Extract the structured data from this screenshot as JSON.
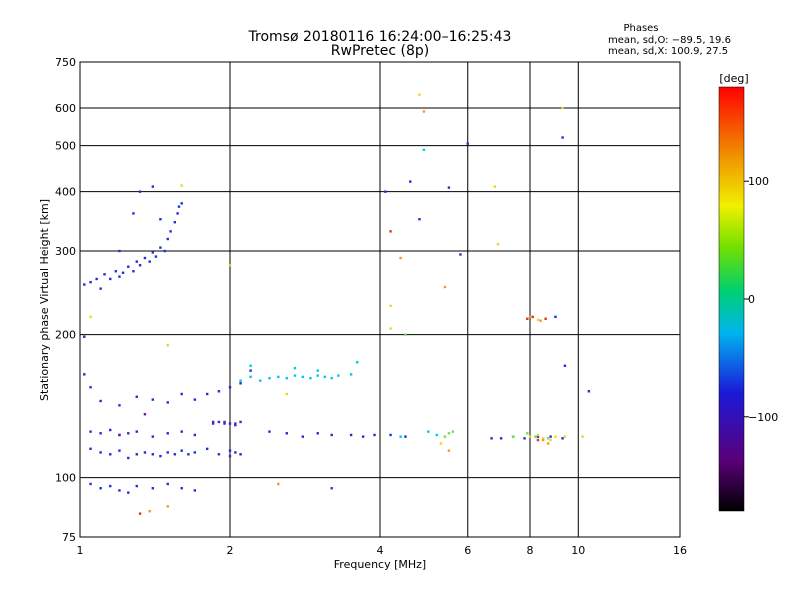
{
  "chart_data": {
    "type": "scatter",
    "title": "Tromsø 20180116 16:24:00–16:25:43",
    "subtitle": "RwPretec (8p)",
    "xlabel": "Frequency [MHz]",
    "ylabel": "Stationary phase Virtual Height [km]",
    "x_scale": "log2",
    "y_scale": "log",
    "xlim": [
      1,
      16
    ],
    "ylim": [
      75,
      750
    ],
    "x_ticks": [
      "1",
      "2",
      "4",
      "6",
      "8",
      "10",
      "16"
    ],
    "x_tick_values": [
      1,
      2,
      4,
      6,
      8,
      10,
      16
    ],
    "y_ticks": [
      "75",
      "100",
      "200",
      "300",
      "400",
      "500",
      "600",
      "750"
    ],
    "y_tick_values": [
      75,
      100,
      200,
      300,
      400,
      500,
      600,
      750
    ],
    "grid": true,
    "legend": {
      "title": "Phases",
      "lines": [
        "mean, sd,O: −89.5, 19.6",
        "mean, sd,X: 100.9, 27.5"
      ],
      "position": "top-right"
    },
    "colorbar": {
      "label": "[deg]",
      "ticks": [
        "100",
        "0",
        "−100"
      ],
      "tick_values": [
        100,
        0,
        -100
      ],
      "range": [
        -180,
        180
      ],
      "colormap": "rainbow"
    },
    "series": [
      {
        "points": [
          [
            1.02,
            255
          ],
          [
            1.05,
            258
          ],
          [
            1.08,
            262
          ],
          [
            1.1,
            250
          ],
          [
            1.12,
            268
          ],
          [
            1.15,
            262
          ],
          [
            1.18,
            272
          ],
          [
            1.2,
            265
          ],
          [
            1.22,
            270
          ],
          [
            1.25,
            278
          ],
          [
            1.28,
            272
          ],
          [
            1.3,
            285
          ],
          [
            1.32,
            280
          ],
          [
            1.35,
            290
          ],
          [
            1.38,
            285
          ],
          [
            1.4,
            298
          ],
          [
            1.42,
            292
          ],
          [
            1.45,
            305
          ],
          [
            1.48,
            300
          ],
          [
            1.5,
            318
          ],
          [
            1.52,
            330
          ],
          [
            1.55,
            345
          ],
          [
            1.57,
            360
          ],
          [
            1.58,
            372
          ],
          [
            1.6,
            378
          ],
          [
            1.28,
            360
          ],
          [
            1.32,
            400
          ],
          [
            1.4,
            410
          ],
          [
            1.45,
            350
          ],
          [
            1.2,
            300
          ],
          [
            1.02,
            198
          ],
          [
            1.02,
            165
          ],
          [
            1.05,
            155
          ],
          [
            1.1,
            145
          ],
          [
            1.2,
            142
          ],
          [
            1.3,
            148
          ],
          [
            1.4,
            146
          ],
          [
            1.5,
            144
          ],
          [
            1.6,
            150
          ],
          [
            1.7,
            146
          ],
          [
            1.8,
            150
          ],
          [
            1.9,
            152
          ],
          [
            2.0,
            155
          ],
          [
            2.1,
            158
          ],
          [
            2.2,
            168
          ],
          [
            1.85,
            130
          ],
          [
            1.9,
            131
          ],
          [
            1.95,
            130
          ],
          [
            2.0,
            130
          ],
          [
            2.05,
            129
          ],
          [
            1.05,
            125
          ],
          [
            1.1,
            124
          ],
          [
            1.15,
            126
          ],
          [
            1.2,
            123
          ],
          [
            1.25,
            124
          ],
          [
            1.3,
            125
          ],
          [
            1.4,
            122
          ],
          [
            1.5,
            124
          ],
          [
            1.6,
            125
          ],
          [
            1.7,
            123
          ],
          [
            1.05,
            115
          ],
          [
            1.1,
            113
          ],
          [
            1.15,
            112
          ],
          [
            1.2,
            114
          ],
          [
            1.25,
            110
          ],
          [
            1.3,
            112
          ],
          [
            1.35,
            113
          ],
          [
            1.4,
            112
          ],
          [
            1.45,
            111
          ],
          [
            1.5,
            113
          ],
          [
            1.55,
            112
          ],
          [
            1.6,
            114
          ],
          [
            1.65,
            112
          ],
          [
            1.7,
            113
          ],
          [
            1.8,
            115
          ],
          [
            1.9,
            112
          ],
          [
            2.0,
            114
          ],
          [
            2.05,
            113
          ],
          [
            2.1,
            112
          ],
          [
            1.05,
            97
          ],
          [
            1.1,
            95
          ],
          [
            1.15,
            96
          ],
          [
            1.2,
            94
          ],
          [
            1.25,
            93
          ],
          [
            1.3,
            96
          ],
          [
            1.4,
            95
          ],
          [
            1.5,
            97
          ],
          [
            1.6,
            95
          ],
          [
            1.7,
            94
          ],
          [
            2.4,
            125
          ],
          [
            2.6,
            124
          ],
          [
            2.8,
            122
          ],
          [
            3.0,
            124
          ],
          [
            3.2,
            123
          ],
          [
            3.5,
            123
          ],
          [
            3.7,
            122
          ],
          [
            3.9,
            123
          ],
          [
            4.2,
            123
          ],
          [
            4.5,
            122
          ],
          [
            6.7,
            121
          ],
          [
            7.0,
            121
          ],
          [
            7.4,
            122
          ],
          [
            7.8,
            121
          ],
          [
            8.3,
            122
          ],
          [
            8.8,
            122
          ],
          [
            9.3,
            121
          ],
          [
            10.5,
            152
          ],
          [
            9.4,
            172
          ],
          [
            9.0,
            218
          ],
          [
            5.8,
            295
          ],
          [
            4.1,
            400
          ],
          [
            4.8,
            350
          ],
          [
            4.6,
            420
          ],
          [
            6.0,
            505
          ],
          [
            9.3,
            520
          ],
          [
            5.5,
            408
          ]
        ],
        "color": "#1f2fd8"
      },
      {
        "points": [
          [
            2.1,
            160
          ],
          [
            2.2,
            163
          ],
          [
            2.3,
            160
          ],
          [
            2.4,
            162
          ],
          [
            2.5,
            163
          ],
          [
            2.6,
            162
          ],
          [
            2.7,
            164
          ],
          [
            2.8,
            163
          ],
          [
            2.9,
            162
          ],
          [
            3.0,
            164
          ],
          [
            3.1,
            163
          ],
          [
            3.2,
            162
          ],
          [
            3.3,
            164
          ],
          [
            3.5,
            165
          ],
          [
            3.6,
            175
          ],
          [
            2.7,
            170
          ],
          [
            3.0,
            168
          ],
          [
            4.9,
            490
          ],
          [
            2.2,
            172
          ],
          [
            4.4,
            122
          ],
          [
            5.0,
            125
          ],
          [
            5.2,
            123
          ]
        ],
        "color": "#00c8e8"
      },
      {
        "points": [
          [
            5.4,
            122
          ],
          [
            5.5,
            124
          ],
          [
            5.6,
            125
          ],
          [
            4.5,
            200
          ],
          [
            7.4,
            122
          ],
          [
            7.9,
            124
          ],
          [
            8.2,
            122
          ],
          [
            8.7,
            121
          ]
        ],
        "color": "#6ee05a"
      },
      {
        "points": [
          [
            4.8,
            640
          ],
          [
            6.8,
            410
          ],
          [
            6.9,
            310
          ],
          [
            8.0,
            122
          ],
          [
            8.3,
            123
          ],
          [
            8.5,
            121
          ],
          [
            8.8,
            120
          ],
          [
            9.0,
            122
          ],
          [
            9.4,
            122
          ],
          [
            10.2,
            122
          ],
          [
            5.3,
            118
          ],
          [
            1.6,
            412
          ],
          [
            4.2,
            206
          ],
          [
            4.2,
            230
          ],
          [
            8.3,
            215
          ],
          [
            1.05,
            218
          ],
          [
            1.5,
            190
          ],
          [
            2.0,
            280
          ],
          [
            9.3,
            600
          ],
          [
            2.6,
            150
          ]
        ],
        "color": "#f4d21e"
      },
      {
        "points": [
          [
            4.4,
            290
          ],
          [
            4.9,
            590
          ],
          [
            5.4,
            252
          ],
          [
            8.0,
            218
          ],
          [
            8.4,
            214
          ],
          [
            8.5,
            120
          ],
          [
            8.7,
            118
          ],
          [
            1.38,
            85
          ],
          [
            1.5,
            87
          ],
          [
            2.5,
            97
          ],
          [
            5.5,
            114
          ]
        ],
        "color": "#f29a20"
      },
      {
        "points": [
          [
            7.9,
            216
          ],
          [
            8.1,
            218
          ],
          [
            8.6,
            216
          ],
          [
            8.3,
            120
          ],
          [
            4.2,
            330
          ],
          [
            1.32,
            84
          ]
        ],
        "color": "#e43020"
      },
      {
        "points": [
          [
            1.85,
            131
          ],
          [
            1.95,
            131
          ],
          [
            2.05,
            130
          ],
          [
            2.1,
            131
          ],
          [
            2.0,
            111
          ],
          [
            3.2,
            95
          ],
          [
            1.2,
            123
          ],
          [
            1.35,
            136
          ]
        ],
        "color": "#6a18b8"
      }
    ]
  }
}
